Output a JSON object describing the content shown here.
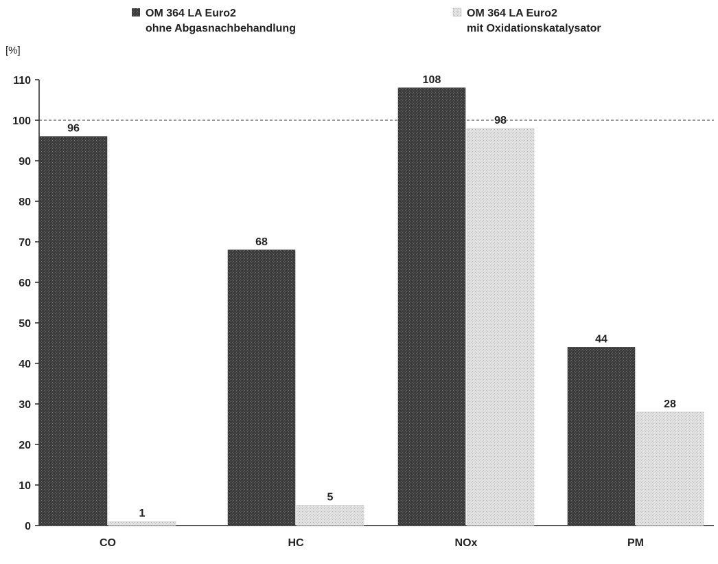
{
  "chart_data": {
    "type": "bar",
    "title": "",
    "ylabel": "[%]",
    "xlabel": "",
    "categories": [
      "CO",
      "HC",
      "NOx",
      "PM"
    ],
    "series": [
      {
        "name": "OM 364 LA Euro2\nohne Abgasnachbehandlung",
        "legend_line1": "OM 364 LA Euro2",
        "legend_line2": "ohne Abgasnachbehandlung",
        "values": [
          96,
          68,
          108,
          44
        ],
        "color": "#3a3a3a"
      },
      {
        "name": "OM 364 LA Euro2\nmit Oxidationskatalysator",
        "legend_line1": "OM 364 LA Euro2",
        "legend_line2": "mit Oxidationskatalysator",
        "values": [
          1,
          5,
          98,
          28
        ],
        "color": "#d4d4d4"
      }
    ],
    "ylim": [
      0,
      110
    ],
    "yticks": [
      0,
      10,
      20,
      30,
      40,
      50,
      60,
      70,
      80,
      90,
      100,
      110
    ],
    "reference_line": 100,
    "legend_position": "top",
    "grid": false
  }
}
